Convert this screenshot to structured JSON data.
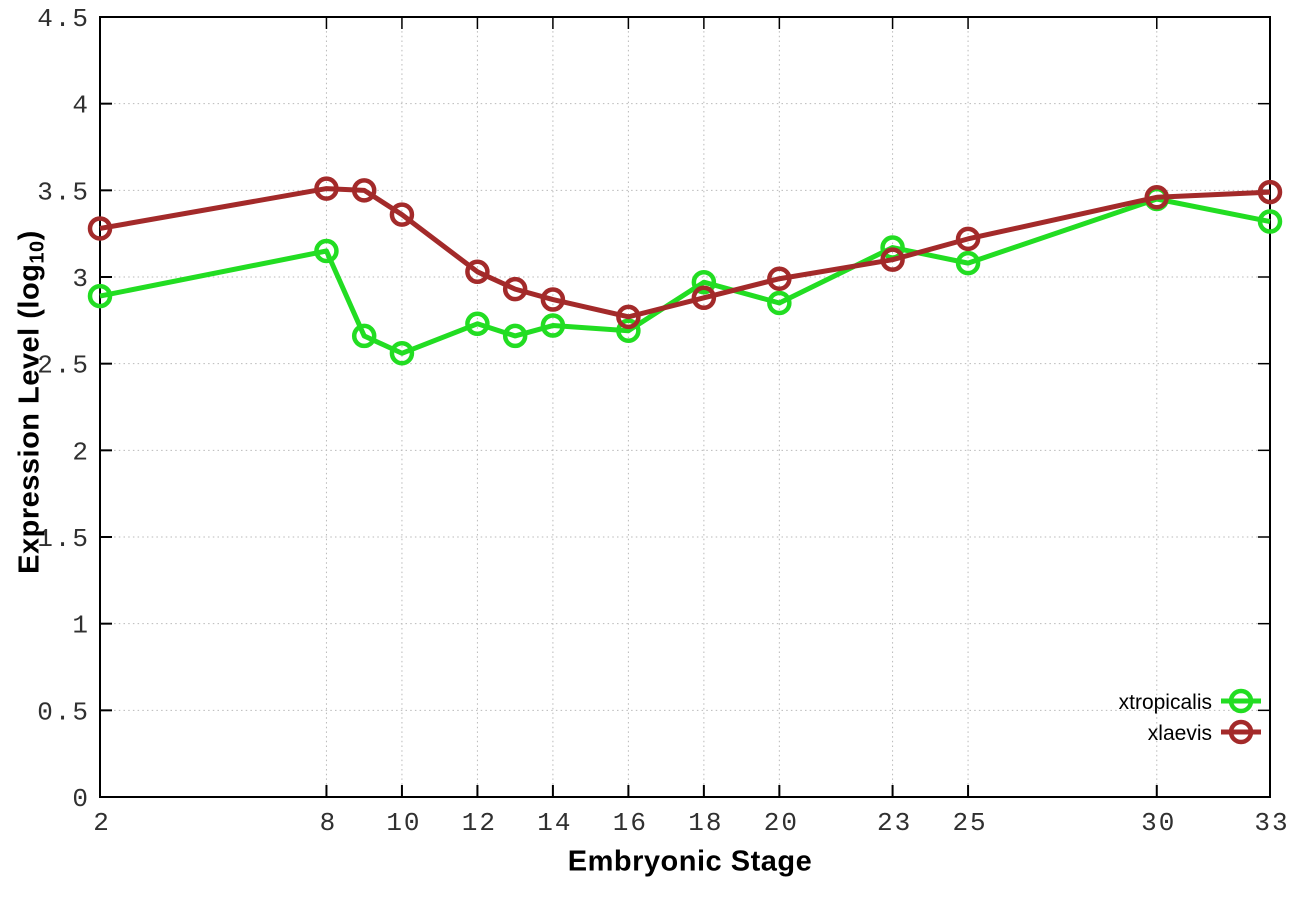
{
  "figure": {
    "xlabel": "Embryonic Stage",
    "ylabel_prefix": "Expression Level (log",
    "ylabel_sub": "10",
    "ylabel_suffix": ")"
  },
  "chart_data": {
    "type": "line",
    "title": "",
    "xlabel": "Embryonic Stage",
    "ylabel": "Expression Level (log10)",
    "xlim": [
      2,
      33
    ],
    "ylim": [
      0,
      4.5
    ],
    "xticks": [
      2,
      8,
      10,
      12,
      14,
      16,
      18,
      20,
      23,
      25,
      30,
      33
    ],
    "yticks": [
      0,
      0.5,
      1,
      1.5,
      2,
      2.5,
      3,
      3.5,
      4,
      4.5
    ],
    "grid": true,
    "grid_style": "dotted",
    "legend_position": "inside-bottom-right",
    "x": [
      2,
      8,
      9,
      10,
      12,
      13,
      14,
      16,
      18,
      20,
      23,
      25,
      30,
      33
    ],
    "series": [
      {
        "name": "xtropicalis",
        "color": "#22dd22",
        "marker": "open-circle",
        "values": [
          2.89,
          3.15,
          2.66,
          2.56,
          2.73,
          2.66,
          2.72,
          2.69,
          2.97,
          2.85,
          3.17,
          3.08,
          3.45,
          3.32
        ]
      },
      {
        "name": "xlaevis",
        "color": "#a32a2a",
        "marker": "open-circle",
        "values": [
          3.28,
          3.51,
          3.5,
          3.36,
          3.03,
          2.93,
          2.87,
          2.77,
          2.88,
          2.99,
          3.1,
          3.22,
          3.46,
          3.49
        ]
      }
    ],
    "style": {
      "grid_color": "#b9b9b9",
      "border_color": "#000000",
      "tick_label_color": "#303030",
      "background": "#ffffff"
    }
  }
}
